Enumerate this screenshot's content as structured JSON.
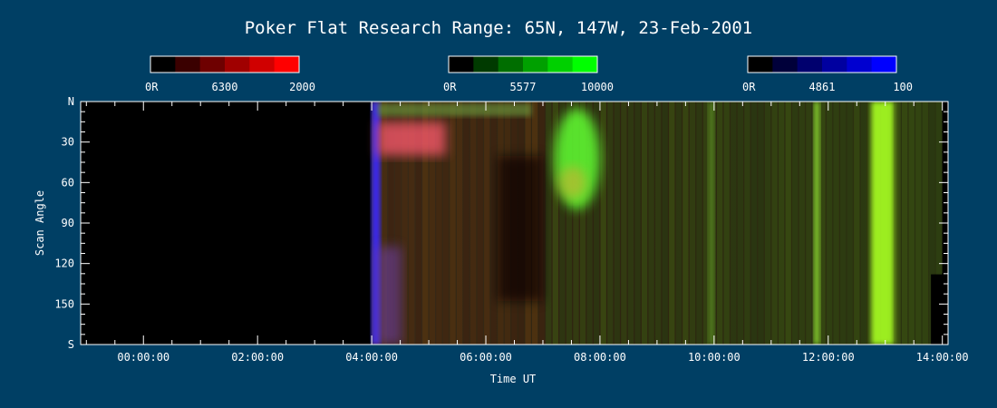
{
  "chart_data": {
    "type": "heatmap",
    "title": "Poker Flat Research Range: 65N, 147W, 23-Feb-2001",
    "xlabel": "Time UT",
    "ylabel": "Scan Angle",
    "x_range_hours": [
      -1.1,
      14.1
    ],
    "x_ticks": [
      "00:00:00",
      "02:00:00",
      "04:00:00",
      "06:00:00",
      "08:00:00",
      "10:00:00",
      "12:00:00",
      "14:00:00"
    ],
    "x_tick_hours": [
      0,
      2,
      4,
      6,
      8,
      10,
      12,
      14
    ],
    "y_range": [
      0,
      180
    ],
    "y_ticks": [
      "N",
      "30",
      "60",
      "90",
      "120",
      "150",
      "S"
    ],
    "y_tick_values": [
      0,
      30,
      60,
      90,
      120,
      150,
      180
    ],
    "data_start_hour": 4.0,
    "colorbars": [
      {
        "name": "6300",
        "min_label": "0R",
        "mid_label": "6300",
        "max_label": "2000",
        "colors": [
          "#000000",
          "#3a0000",
          "#6e0000",
          "#a00000",
          "#d00000",
          "#ff0000"
        ]
      },
      {
        "name": "5577",
        "min_label": "0R",
        "mid_label": "5577",
        "max_label": "10000",
        "colors": [
          "#000000",
          "#003a00",
          "#006e00",
          "#00a000",
          "#00d000",
          "#00ff00"
        ]
      },
      {
        "name": "4861",
        "min_label": "0R",
        "mid_label": "4861",
        "max_label": "100",
        "colors": [
          "#000000",
          "#00003a",
          "#00006e",
          "#0000a0",
          "#0000d0",
          "#0000ff"
        ]
      }
    ],
    "features": [
      {
        "kind": "blue-band",
        "hours": [
          4.0,
          4.15
        ],
        "color": "#3a2cff"
      },
      {
        "kind": "red-patch",
        "hours": [
          4.1,
          5.3
        ],
        "angle": [
          15,
          40
        ],
        "color": "#ff5a6e"
      },
      {
        "kind": "green-patch",
        "hours": [
          7.2,
          8.0
        ],
        "angle": [
          5,
          80
        ],
        "color": "#60ff30"
      },
      {
        "kind": "green-band",
        "hours": [
          11.75,
          11.85
        ],
        "color": "#90e030"
      },
      {
        "kind": "green-band",
        "hours": [
          12.75,
          13.15
        ],
        "color": "#a8ff20"
      },
      {
        "kind": "green-band",
        "hours": [
          9.9,
          10.0
        ],
        "color": "#5a8a20"
      }
    ]
  }
}
